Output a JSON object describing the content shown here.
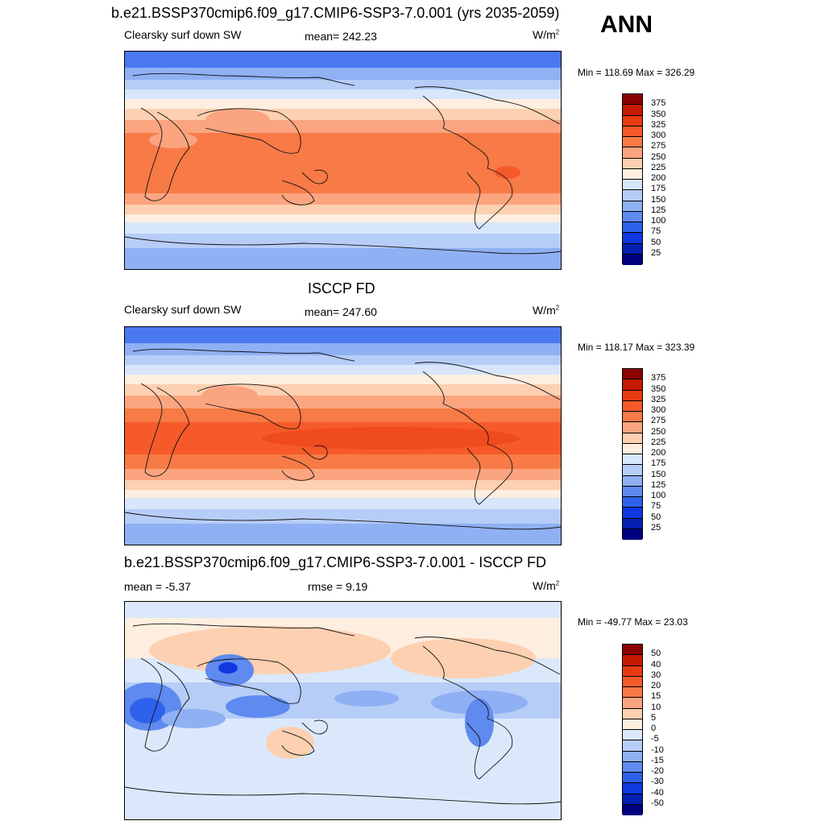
{
  "header": {
    "title": "b.e21.BSSP370cmip6.f09_g17.CMIP6-SSP3-7.0.001 (yrs 2035-2059)",
    "season": "ANN"
  },
  "panels": [
    {
      "id": "model",
      "title": "",
      "left_label": "Clearsky surf down SW",
      "center_label": "mean= 242.23",
      "units": "W/m",
      "units_sup": "2",
      "minmax": "Min = 118.69 Max = 326.29",
      "colorbar": {
        "labels": [
          "375",
          "350",
          "325",
          "300",
          "275",
          "250",
          "225",
          "200",
          "175",
          "150",
          "125",
          "100",
          "75",
          "50",
          "25"
        ],
        "colors": [
          "#8b0000",
          "#c61a00",
          "#e83a10",
          "#f65a2a",
          "#f87a46",
          "#fba580",
          "#fcd0b0",
          "#fdeee0",
          "#d7e6fb",
          "#b6cdf7",
          "#8fb0f3",
          "#5f8aef",
          "#2f62ec",
          "#1038e0",
          "#0520b0",
          "#000080"
        ]
      }
    },
    {
      "id": "obs",
      "title": "ISCCP FD",
      "left_label": "Clearsky surf down SW",
      "center_label": "mean= 247.60",
      "units": "W/m",
      "units_sup": "2",
      "minmax": "Min = 118.17 Max = 323.39",
      "colorbar": {
        "labels": [
          "375",
          "350",
          "325",
          "300",
          "275",
          "250",
          "225",
          "200",
          "175",
          "150",
          "125",
          "100",
          "75",
          "50",
          "25"
        ],
        "colors": [
          "#8b0000",
          "#c61a00",
          "#e83a10",
          "#f65a2a",
          "#f87a46",
          "#fba580",
          "#fcd0b0",
          "#fdeee0",
          "#d7e6fb",
          "#b6cdf7",
          "#8fb0f3",
          "#5f8aef",
          "#2f62ec",
          "#1038e0",
          "#0520b0",
          "#000080"
        ]
      }
    },
    {
      "id": "diff",
      "title": "b.e21.BSSP370cmip6.f09_g17.CMIP6-SSP3-7.0.001 - ISCCP FD",
      "left_label": "mean =  -5.37",
      "center_label": "rmse =   9.19",
      "units": "W/m",
      "units_sup": "2",
      "minmax": "Min = -49.77 Max =  23.03",
      "colorbar": {
        "labels": [
          "50",
          "40",
          "30",
          "20",
          "15",
          "10",
          "5",
          "0",
          "-5",
          "-10",
          "-15",
          "-20",
          "-30",
          "-40",
          "-50"
        ],
        "colors": [
          "#8b0000",
          "#c61a00",
          "#e83a10",
          "#f65a2a",
          "#f87a46",
          "#fba580",
          "#fcd0b0",
          "#fdeee0",
          "#dbe8fb",
          "#b6cdf7",
          "#8fb0f3",
          "#5f8aef",
          "#2f62ec",
          "#1038e0",
          "#0520b0",
          "#000080"
        ]
      }
    }
  ]
}
